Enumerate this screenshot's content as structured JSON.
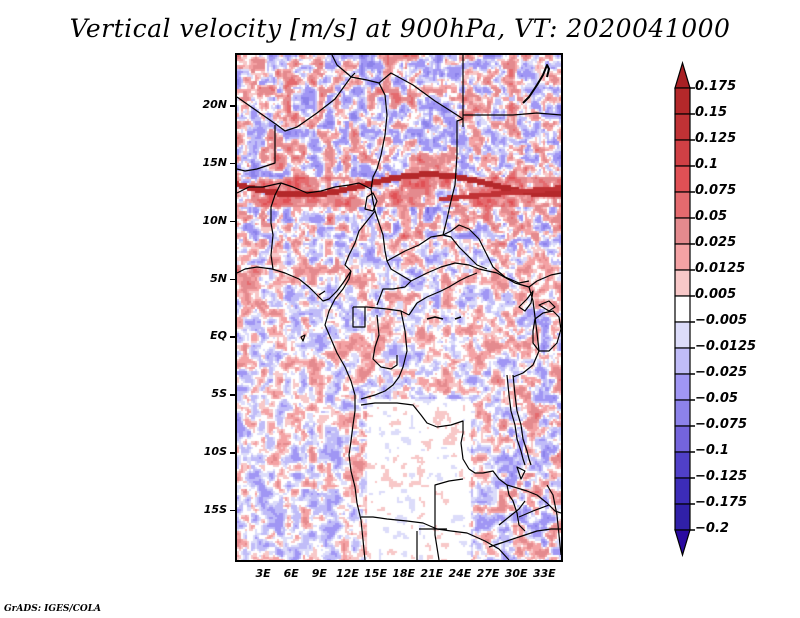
{
  "title": "Vertical velocity [m/s] at 900hPa, VT: 2020041000",
  "credit": "GrADS: IGES/COLA",
  "map": {
    "variable": "Vertical velocity",
    "units": "m/s",
    "level": "900hPa",
    "valid_time": "2020041000",
    "lat_range": [
      -19.5,
      24.5
    ],
    "lon_range": [
      0,
      35
    ],
    "lat_ticks": [
      {
        "value": 20,
        "label": "20N"
      },
      {
        "value": 15,
        "label": "15N"
      },
      {
        "value": 10,
        "label": "10N"
      },
      {
        "value": 5,
        "label": "5N"
      },
      {
        "value": 0,
        "label": "EQ"
      },
      {
        "value": -5,
        "label": "5S"
      },
      {
        "value": -10,
        "label": "10S"
      },
      {
        "value": -15,
        "label": "15S"
      }
    ],
    "lon_ticks": [
      {
        "value": 3,
        "label": "3E"
      },
      {
        "value": 6,
        "label": "6E"
      },
      {
        "value": 9,
        "label": "9E"
      },
      {
        "value": 12,
        "label": "12E"
      },
      {
        "value": 15,
        "label": "15E"
      },
      {
        "value": 18,
        "label": "18E"
      },
      {
        "value": 21,
        "label": "21E"
      },
      {
        "value": 24,
        "label": "24E"
      },
      {
        "value": 27,
        "label": "27E"
      },
      {
        "value": 30,
        "label": "30E"
      },
      {
        "value": 33,
        "label": "33E"
      }
    ]
  },
  "colorbar": {
    "orientation": "vertical",
    "levels": [
      {
        "label": "0.175",
        "color": "#b4282a"
      },
      {
        "label": "0.15",
        "color": "#c03235"
      },
      {
        "label": "0.125",
        "color": "#d04045"
      },
      {
        "label": "0.1",
        "color": "#e05055"
      },
      {
        "label": "0.075",
        "color": "#e46a6e"
      },
      {
        "label": "0.05",
        "color": "#e48a8e"
      },
      {
        "label": "0.025",
        "color": "#f4a2a4"
      },
      {
        "label": "0.0125",
        "color": "#f8c8c8"
      },
      {
        "label": "0.005",
        "color": "#fde6e6"
      },
      {
        "label": "-0.005",
        "color": "#ffffff"
      },
      {
        "label": "-0.0125",
        "color": "#dcdcfa"
      },
      {
        "label": "-0.025",
        "color": "#c0bcf8"
      },
      {
        "label": "-0.05",
        "color": "#a096f4"
      },
      {
        "label": "-0.075",
        "color": "#8c82ea"
      },
      {
        "label": "-0.1",
        "color": "#7464dc"
      },
      {
        "label": "-0.125",
        "color": "#5040c8"
      },
      {
        "label": "-0.175",
        "color": "#3c2cb8"
      },
      {
        "label": "-0.2",
        "color": "#3020a8"
      }
    ],
    "top_arrow_color": "#a82024",
    "bottom_arrow_color": "#2a0aa0"
  }
}
